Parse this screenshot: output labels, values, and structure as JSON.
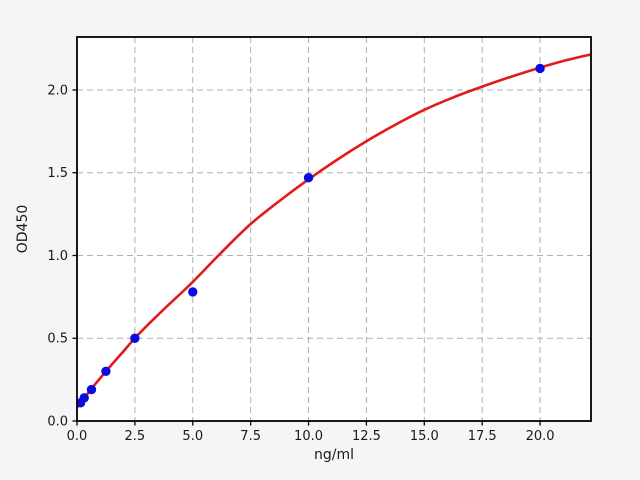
{
  "figure": {
    "background_color": "#f5f5f5",
    "plot_background_color": "#ffffff",
    "grid_color": "#b0b0b0",
    "spine_color": "#000000",
    "text_color": "#1a1a1a"
  },
  "chart_data": {
    "type": "scatter",
    "title": "",
    "xlabel": "ng/ml",
    "ylabel": "OD450",
    "xlim": [
      0,
      22.2
    ],
    "ylim": [
      0,
      2.32
    ],
    "grid": true,
    "grid_style": "dashed",
    "legend_position": "none",
    "xticks": {
      "values": [
        0.0,
        2.5,
        5.0,
        7.5,
        10.0,
        12.5,
        15.0,
        17.5,
        20.0
      ],
      "labels": [
        "0.0",
        "2.5",
        "5.0",
        "7.5",
        "10.0",
        "12.5",
        "15.0",
        "17.5",
        "20.0"
      ]
    },
    "yticks": {
      "values": [
        0.0,
        0.5,
        1.0,
        1.5,
        2.0
      ],
      "labels": [
        "0.0",
        "0.5",
        "1.0",
        "1.5",
        "2.0"
      ]
    },
    "series": [
      {
        "name": "standard-points",
        "type": "scatter",
        "marker": "circle",
        "color": "#0b0be0",
        "marker_radius": 4.7,
        "x": [
          0.156,
          0.312,
          0.625,
          1.25,
          2.5,
          5.0,
          10.0,
          20.0
        ],
        "y": [
          0.11,
          0.14,
          0.19,
          0.3,
          0.5,
          0.78,
          1.47,
          2.13
        ]
      },
      {
        "name": "fit-curve",
        "type": "line",
        "color": "#e31a1a",
        "line_width": 2.6,
        "x": [
          0,
          0.3,
          0.625,
          1.25,
          1.875,
          2.5,
          3.125,
          3.75,
          4.4,
          5.0,
          6.25,
          7.5,
          8.75,
          10.0,
          11.25,
          12.5,
          13.75,
          15.0,
          16.25,
          17.5,
          18.75,
          20.0,
          21.0,
          22.2
        ],
        "y": [
          0.08,
          0.135,
          0.195,
          0.3,
          0.4,
          0.5,
          0.59,
          0.675,
          0.76,
          0.84,
          1.02,
          1.19,
          1.33,
          1.46,
          1.58,
          1.69,
          1.79,
          1.88,
          1.955,
          2.02,
          2.08,
          2.135,
          2.175,
          2.215
        ]
      }
    ]
  }
}
